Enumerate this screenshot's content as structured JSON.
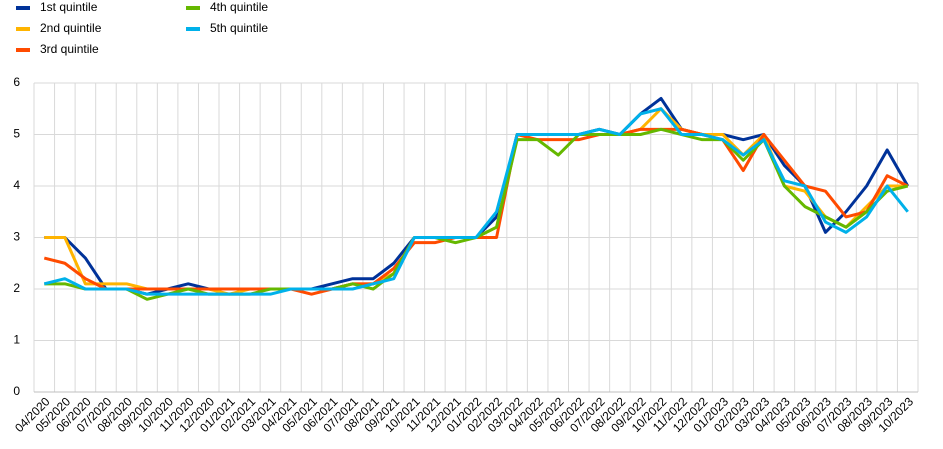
{
  "chart_data": {
    "type": "line",
    "categories": [
      "04/2020",
      "05/2020",
      "06/2020",
      "07/2020",
      "08/2020",
      "09/2020",
      "10/2020",
      "11/2020",
      "12/2020",
      "01/2021",
      "02/2021",
      "03/2021",
      "04/2021",
      "05/2021",
      "06/2021",
      "07/2021",
      "08/2021",
      "09/2021",
      "10/2021",
      "11/2021",
      "12/2021",
      "01/2022",
      "02/2022",
      "03/2022",
      "04/2022",
      "05/2022",
      "06/2022",
      "07/2022",
      "08/2022",
      "09/2022",
      "10/2022",
      "11/2022",
      "12/2022",
      "01/2023",
      "02/2023",
      "03/2023",
      "04/2023",
      "05/2023",
      "06/2023",
      "07/2023",
      "08/2023",
      "09/2023",
      "10/2023"
    ],
    "series": [
      {
        "name": "1st quintile",
        "color": "#003299",
        "values": [
          3,
          3,
          2.6,
          2.0,
          2,
          1.9,
          2,
          2.1,
          2,
          2,
          2,
          2,
          2,
          2,
          2.1,
          2.2,
          2.2,
          2.5,
          3,
          3,
          3,
          3,
          3.4,
          5,
          5,
          5,
          5,
          5.1,
          5,
          5.4,
          5.7,
          5.1,
          5,
          5,
          4.9,
          5,
          4.4,
          4,
          3.1,
          3.5,
          4,
          4.7,
          4
        ]
      },
      {
        "name": "2nd quintile",
        "color": "#ffb400",
        "values": [
          3,
          3,
          2.1,
          2.1,
          2.1,
          2,
          2,
          2,
          2,
          1.9,
          2,
          2,
          2,
          2,
          2,
          2.1,
          2.1,
          2.3,
          3,
          3,
          3,
          3,
          3.2,
          5,
          5,
          5,
          5,
          5,
          5,
          5.1,
          5.5,
          5.1,
          5,
          5,
          4.6,
          5,
          4,
          3.9,
          3.4,
          3.2,
          3.6,
          4,
          4
        ]
      },
      {
        "name": "3rd quintile",
        "color": "#ff4b00",
        "values": [
          2.6,
          2.5,
          2.2,
          2.0,
          2,
          2,
          2,
          2,
          2,
          2,
          2,
          2,
          2,
          1.9,
          2,
          2.1,
          2.1,
          2.4,
          2.9,
          2.9,
          3,
          3,
          3,
          5,
          4.9,
          4.9,
          4.9,
          5,
          5,
          5.1,
          5.1,
          5.1,
          5,
          4.9,
          4.3,
          5,
          4.5,
          4,
          3.9,
          3.4,
          3.5,
          4.2,
          4
        ]
      },
      {
        "name": "4th quintile",
        "color": "#65b800",
        "values": [
          2.1,
          2.1,
          2,
          2,
          2,
          1.8,
          1.9,
          2,
          1.9,
          1.9,
          1.9,
          2,
          2,
          2,
          2,
          2.1,
          2,
          2.3,
          3,
          3,
          2.9,
          3,
          3.2,
          4.9,
          4.9,
          4.6,
          5,
          5,
          5,
          5,
          5.1,
          5,
          4.9,
          4.9,
          4.5,
          4.9,
          4,
          3.6,
          3.4,
          3.2,
          3.5,
          3.9,
          4
        ]
      },
      {
        "name": "5th quintile",
        "color": "#00b1ea",
        "values": [
          2.1,
          2.2,
          2,
          2,
          2,
          1.9,
          1.9,
          1.9,
          1.9,
          1.9,
          1.9,
          1.9,
          2,
          2,
          2,
          2,
          2.1,
          2.2,
          3,
          3,
          3,
          3,
          3.5,
          5,
          5,
          5,
          5,
          5.1,
          5,
          5.4,
          5.5,
          5,
          5,
          4.9,
          4.6,
          4.9,
          4.1,
          4,
          3.3,
          3.1,
          3.4,
          4,
          3.5
        ]
      }
    ],
    "ylim": [
      0,
      6
    ],
    "yticks": [
      0,
      1,
      2,
      3,
      4,
      5,
      6
    ],
    "grid": true
  }
}
